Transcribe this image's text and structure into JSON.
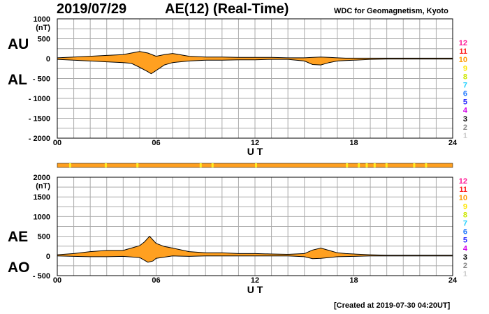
{
  "header": {
    "date": "2019/07/29",
    "title": "AE(12) (Real-Time)",
    "source": "WDC for Geomagnetism, Kyoto"
  },
  "footer": {
    "created": "[Created at 2019-07-30 04:20UT]"
  },
  "colors": {
    "fill": "#ffa020",
    "band": "#ffa020",
    "band_highlight": "#ffee20",
    "line": "#000000",
    "grid": "#aaaaaa"
  },
  "legend": [
    {
      "label": "12",
      "color": "#ff1493"
    },
    {
      "label": "11",
      "color": "#ff1f1f"
    },
    {
      "label": "10",
      "color": "#ff9900"
    },
    {
      "label": "9",
      "color": "#ffe600"
    },
    {
      "label": "8",
      "color": "#cde800"
    },
    {
      "label": "7",
      "color": "#20d0ff"
    },
    {
      "label": "6",
      "color": "#1e78ff"
    },
    {
      "label": "5",
      "color": "#2a2aff"
    },
    {
      "label": "4",
      "color": "#d300e8"
    },
    {
      "label": "3",
      "color": "#000000"
    },
    {
      "label": "2",
      "color": "#888888"
    },
    {
      "label": "1",
      "color": "#cccccc"
    }
  ],
  "chart_data": [
    {
      "type": "area",
      "name": "AU/AL",
      "xlabel": "U T",
      "ylabel": "(nT)",
      "side_labels": {
        "upper": "AU",
        "lower": "AL"
      },
      "xlim": [
        0,
        24
      ],
      "ylim": [
        -2000,
        1000
      ],
      "xticks": [
        0,
        6,
        12,
        18,
        24
      ],
      "xtick_labels": [
        "00",
        "06",
        "12",
        "18",
        "24"
      ],
      "yticks": [
        1000,
        500,
        0,
        -500,
        -1000,
        -1500,
        -2000
      ],
      "ytick_labels": [
        "1000",
        "500",
        "0",
        "- 500",
        "- 1000",
        "- 1500",
        "- 2000"
      ],
      "grid": true,
      "series": [
        {
          "name": "AU",
          "x": [
            0,
            1,
            2,
            3,
            4,
            4.5,
            5,
            5.5,
            6,
            6.5,
            7,
            8,
            9,
            10,
            11,
            12,
            13,
            14,
            15,
            15.5,
            16,
            16.5,
            17,
            17.5,
            18,
            19,
            20,
            21,
            22,
            23,
            24
          ],
          "values": [
            20,
            40,
            60,
            80,
            100,
            140,
            180,
            140,
            60,
            100,
            130,
            60,
            40,
            40,
            30,
            30,
            30,
            20,
            20,
            30,
            40,
            30,
            20,
            10,
            10,
            10,
            10,
            10,
            10,
            10,
            10
          ]
        },
        {
          "name": "AL",
          "x": [
            0,
            1,
            2,
            3,
            4,
            4.5,
            5,
            5.5,
            5.7,
            6,
            6.5,
            7,
            8,
            9,
            10,
            11,
            12,
            13,
            14,
            15,
            15.5,
            16,
            16.5,
            17,
            17.5,
            18,
            19,
            20,
            21,
            22,
            23,
            24
          ],
          "values": [
            -20,
            -40,
            -60,
            -80,
            -100,
            -120,
            -220,
            -330,
            -380,
            -300,
            -160,
            -100,
            -60,
            -40,
            -40,
            -30,
            -30,
            -20,
            -20,
            -60,
            -150,
            -160,
            -100,
            -60,
            -50,
            -40,
            -20,
            -10,
            -10,
            -10,
            -10,
            -10
          ]
        }
      ]
    },
    {
      "type": "area",
      "name": "AE/AO",
      "xlabel": "U T",
      "ylabel": "(nT)",
      "side_labels": {
        "upper": "AE",
        "lower": "AO"
      },
      "xlim": [
        0,
        24
      ],
      "ylim": [
        -500,
        2000
      ],
      "xticks": [
        0,
        6,
        12,
        18,
        24
      ],
      "xtick_labels": [
        "00",
        "06",
        "12",
        "18",
        "24"
      ],
      "yticks": [
        2000,
        1500,
        1000,
        500,
        0,
        -500
      ],
      "ytick_labels": [
        "2000",
        "1500",
        "1000",
        "500",
        "0",
        "- 500"
      ],
      "grid": true,
      "series": [
        {
          "name": "AE",
          "x": [
            0,
            1,
            2,
            3,
            4,
            4.5,
            5,
            5.3,
            5.6,
            6,
            6.5,
            7,
            8,
            9,
            10,
            11,
            12,
            13,
            14,
            15,
            15.5,
            16,
            16.5,
            17,
            17.5,
            18,
            19,
            20,
            21,
            22,
            23,
            24
          ],
          "values": [
            30,
            60,
            110,
            140,
            140,
            200,
            260,
            360,
            500,
            320,
            240,
            200,
            110,
            80,
            80,
            60,
            60,
            50,
            40,
            60,
            150,
            200,
            140,
            80,
            60,
            50,
            30,
            20,
            20,
            20,
            20,
            20
          ]
        },
        {
          "name": "AO",
          "x": [
            0,
            1,
            2,
            3,
            4,
            5,
            5.5,
            5.8,
            6,
            6.5,
            7,
            8,
            9,
            10,
            11,
            12,
            13,
            14,
            15,
            15.5,
            16,
            16.5,
            17,
            18,
            19,
            20,
            21,
            22,
            23,
            24
          ],
          "values": [
            0,
            -10,
            -20,
            -20,
            -10,
            -40,
            -160,
            -130,
            -60,
            -30,
            0,
            -10,
            0,
            0,
            0,
            0,
            0,
            0,
            -20,
            -70,
            -60,
            -40,
            -20,
            -10,
            0,
            0,
            0,
            0,
            0,
            0
          ]
        }
      ]
    }
  ]
}
